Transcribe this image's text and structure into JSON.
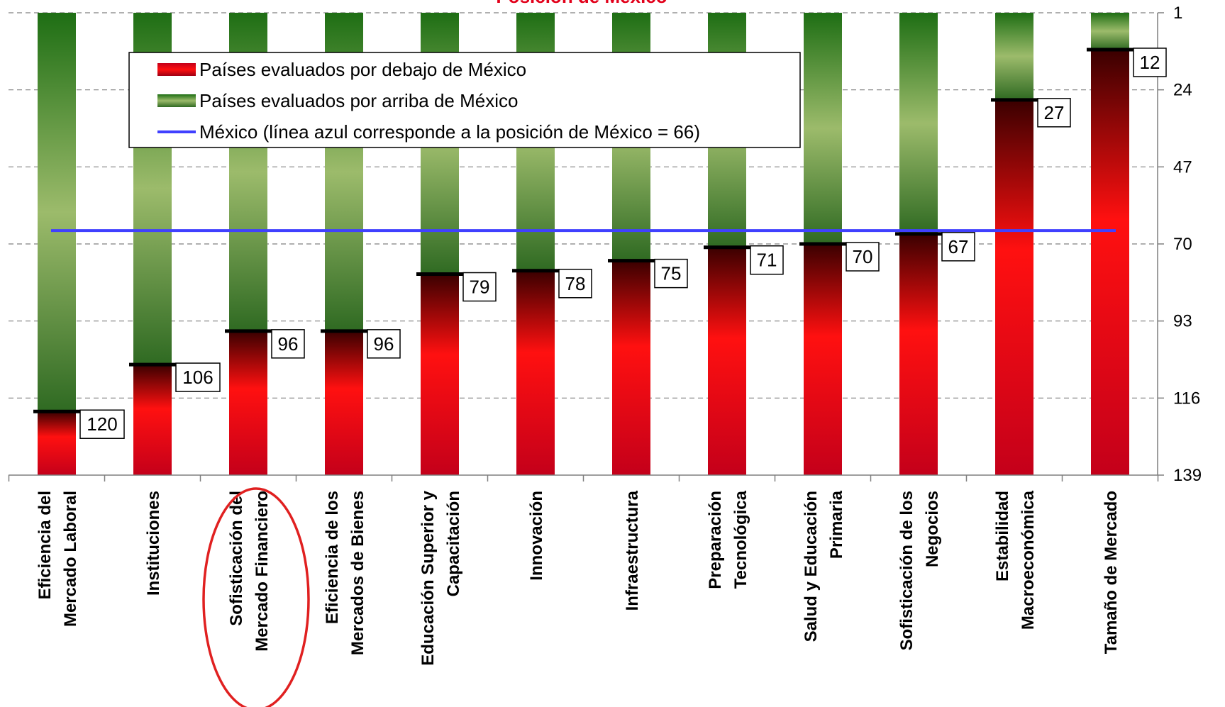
{
  "chart_data": {
    "type": "bar",
    "title": "Posición de México",
    "title_color": "#e2001a",
    "categories": [
      [
        "Eficiencia del",
        "Mercado Laboral"
      ],
      [
        "Instituciones"
      ],
      [
        "Sofisticación del",
        "Mercado Financiero"
      ],
      [
        "Eficiencia de los",
        "Mercados de Bienes"
      ],
      [
        "Educación Superior y",
        "Capacitación"
      ],
      [
        "Innovación"
      ],
      [
        "Infraestructura"
      ],
      [
        "Preparación",
        "Tecnológica"
      ],
      [
        "Salud y Educación",
        "Primaria"
      ],
      [
        "Sofisticación de los",
        "Negocios"
      ],
      [
        "Estabilidad",
        "Macroeconómica"
      ],
      [
        "Tamaño de Mercado"
      ]
    ],
    "values": [
      120,
      106,
      96,
      96,
      79,
      78,
      75,
      71,
      70,
      67,
      27,
      12
    ],
    "value_labels": [
      "120",
      "106",
      "96",
      "96",
      "79",
      "78",
      "75",
      "71",
      "70",
      "67",
      "27",
      "12"
    ],
    "y_axis": {
      "min": 1,
      "max": 139,
      "inverted": true,
      "position": "right",
      "ticks": [
        1,
        24,
        47,
        70,
        93,
        116,
        139
      ],
      "tick_labels": [
        "1",
        "24",
        "47",
        "70",
        "93",
        "116",
        "139"
      ]
    },
    "grid": true,
    "reference_line": {
      "value": 66,
      "color": "#4040ff"
    },
    "highlighted_category_index": 2,
    "highlight_color": "#e02020",
    "colors": {
      "above": "#2e7d1e",
      "above_light": "#9cbb6b",
      "below": "#c8001a",
      "below_bright": "#ff1010",
      "marker": "#000000"
    },
    "legend": {
      "position": "top-left",
      "items": [
        {
          "label": "Países evaluados por debajo de México",
          "kind": "below"
        },
        {
          "label": "Países evaluados por arriba de México",
          "kind": "above"
        },
        {
          "label": "México (línea azul corresponde a la posición de México = 66)",
          "kind": "line"
        }
      ]
    }
  }
}
